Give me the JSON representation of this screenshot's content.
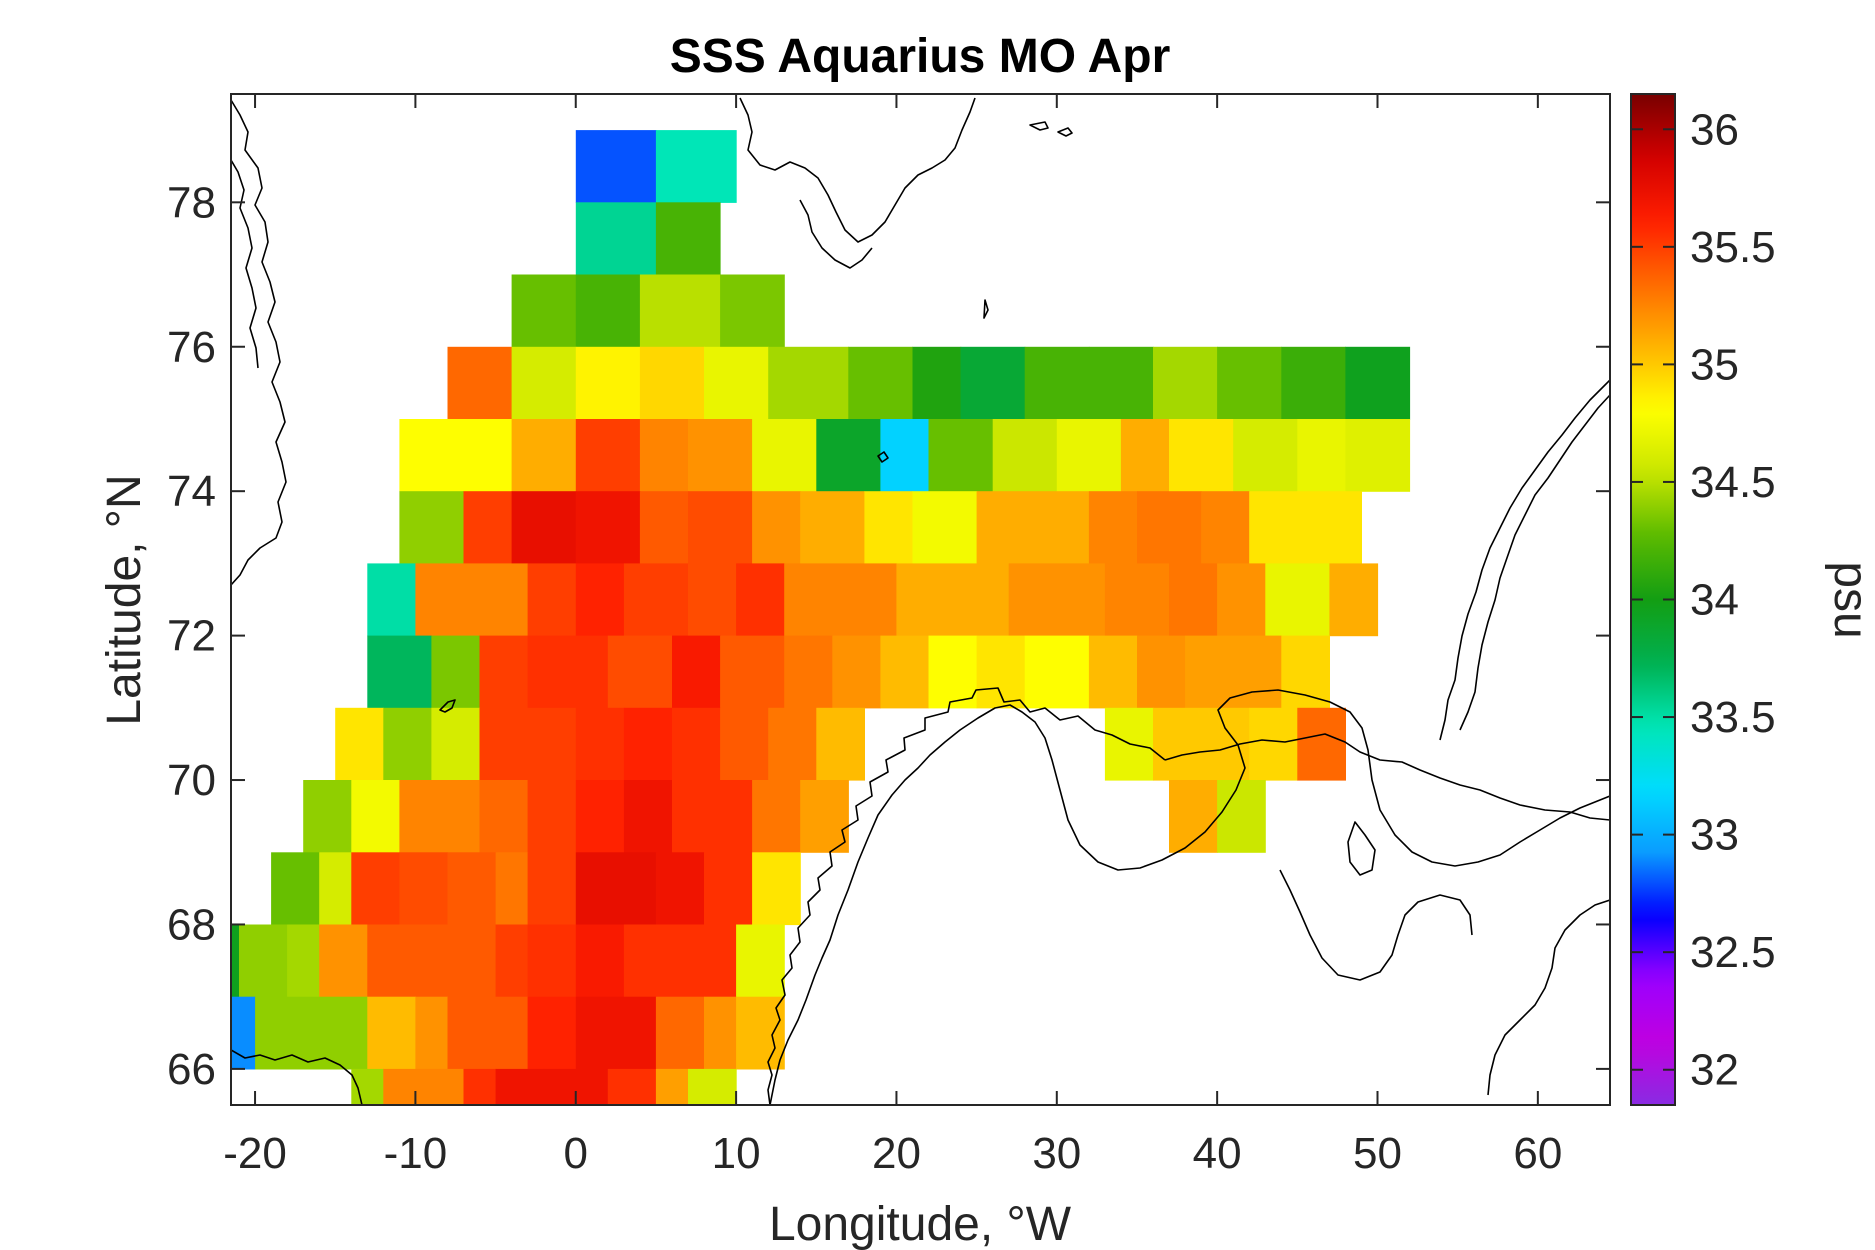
{
  "chart_data": {
    "type": "heatmap",
    "title": "SSS Aquarius MO Apr",
    "xlabel": "Longitude, °W",
    "ylabel": "Latitude, °N",
    "colorbar_label": "psu",
    "xlim": [
      -21.5,
      64.5
    ],
    "ylim": [
      65.5,
      79.5
    ],
    "x_ticks": [
      -20,
      -10,
      0,
      10,
      20,
      30,
      40,
      50,
      60
    ],
    "x_tick_labels": [
      "-20",
      "-10",
      "0",
      "10",
      "20",
      "30",
      "40",
      "50",
      "60"
    ],
    "y_ticks": [
      66,
      68,
      70,
      72,
      74,
      76,
      78
    ],
    "y_tick_labels": [
      "66",
      "68",
      "70",
      "72",
      "74",
      "76",
      "78"
    ],
    "clim": [
      31.85,
      36.15
    ],
    "colorbar_ticks": [
      32,
      32.5,
      33,
      33.5,
      34,
      34.5,
      35,
      35.5,
      36
    ],
    "colorbar_tick_labels": [
      "32",
      "32.5",
      "33",
      "33.5",
      "34",
      "34.5",
      "35",
      "35.5",
      "36"
    ],
    "colormap": [
      "#8a2be2",
      "#c000e0",
      "#9a00ff",
      "#0000ff",
      "#0a9cff",
      "#00dcff",
      "#00e6b4",
      "#00b050",
      "#139e13",
      "#5aba00",
      "#c8e600",
      "#ffff00",
      "#ffb400",
      "#ff6a00",
      "#ff1e00",
      "#d20000",
      "#780000"
    ],
    "rows": [
      {
        "lat": 78.5,
        "cells": [
          [
            0,
            5,
            32.8
          ],
          [
            5,
            10,
            33.45
          ]
        ]
      },
      {
        "lat": 77.5,
        "cells": [
          [
            0,
            5,
            33.55
          ],
          [
            5,
            9,
            34.2
          ]
        ]
      },
      {
        "lat": 76.5,
        "cells": [
          [
            -4,
            0,
            34.3
          ],
          [
            0,
            4,
            34.2
          ],
          [
            4,
            9,
            34.5
          ],
          [
            9,
            13,
            34.35
          ]
        ]
      },
      {
        "lat": 75.5,
        "cells": [
          [
            -8,
            -4,
            35.35
          ],
          [
            -4,
            0,
            34.6
          ],
          [
            0,
            4,
            34.85
          ],
          [
            4,
            8,
            34.95
          ],
          [
            8,
            12,
            34.7
          ],
          [
            12,
            17,
            34.45
          ],
          [
            17,
            21,
            34.3
          ],
          [
            21,
            24,
            34.05
          ],
          [
            24,
            28,
            33.85
          ],
          [
            28,
            32,
            34.2
          ],
          [
            32,
            36,
            34.2
          ],
          [
            36,
            40,
            34.45
          ],
          [
            40,
            44,
            34.3
          ],
          [
            44,
            48,
            34.15
          ],
          [
            48,
            52,
            33.95
          ]
        ]
      },
      {
        "lat": 74.5,
        "cells": [
          [
            -11,
            -4,
            34.8
          ],
          [
            -4,
            0,
            35.1
          ],
          [
            0,
            4,
            35.5
          ],
          [
            4,
            7,
            35.25
          ],
          [
            7,
            11,
            35.2
          ],
          [
            11,
            15,
            34.7
          ],
          [
            15,
            19,
            33.9
          ],
          [
            19,
            22,
            33.15
          ],
          [
            22,
            26,
            34.3
          ],
          [
            26,
            30,
            34.55
          ],
          [
            30,
            34,
            34.7
          ],
          [
            34,
            37,
            35.1
          ],
          [
            37,
            41,
            34.9
          ],
          [
            41,
            45,
            34.6
          ],
          [
            45,
            48,
            34.7
          ],
          [
            48,
            52,
            34.65
          ]
        ]
      },
      {
        "lat": 73.5,
        "cells": [
          [
            -11,
            -7,
            34.4
          ],
          [
            -7,
            -4,
            35.5
          ],
          [
            -4,
            0,
            35.75
          ],
          [
            0,
            4,
            35.7
          ],
          [
            4,
            7,
            35.4
          ],
          [
            7,
            11,
            35.45
          ],
          [
            11,
            14,
            35.2
          ],
          [
            14,
            18,
            35.1
          ],
          [
            18,
            21,
            34.9
          ],
          [
            21,
            25,
            34.75
          ],
          [
            25,
            32,
            35.1
          ],
          [
            32,
            35,
            35.25
          ],
          [
            35,
            39,
            35.3
          ],
          [
            39,
            42,
            35.25
          ],
          [
            42,
            49,
            34.9
          ]
        ]
      },
      {
        "lat": 72.5,
        "cells": [
          [
            -13,
            -10,
            33.5
          ],
          [
            -10,
            -3,
            35.25
          ],
          [
            -3,
            0,
            35.5
          ],
          [
            0,
            3,
            35.6
          ],
          [
            3,
            7,
            35.5
          ],
          [
            7,
            10,
            35.45
          ],
          [
            10,
            13,
            35.55
          ],
          [
            13,
            20,
            35.25
          ],
          [
            20,
            27,
            35.1
          ],
          [
            27,
            33,
            35.2
          ],
          [
            33,
            37,
            35.25
          ],
          [
            37,
            40,
            35.3
          ],
          [
            40,
            43,
            35.2
          ],
          [
            43,
            47,
            34.7
          ],
          [
            47,
            50,
            35.1
          ]
        ]
      },
      {
        "lat": 71.5,
        "cells": [
          [
            -13,
            -9,
            33.7
          ],
          [
            -9,
            -6,
            34.35
          ],
          [
            -6,
            -3,
            35.5
          ],
          [
            -3,
            2,
            35.55
          ],
          [
            2,
            6,
            35.45
          ],
          [
            6,
            9,
            35.65
          ],
          [
            9,
            13,
            35.4
          ],
          [
            13,
            16,
            35.3
          ],
          [
            16,
            19,
            35.2
          ],
          [
            19,
            22,
            35.05
          ],
          [
            22,
            25,
            34.8
          ],
          [
            25,
            28,
            34.9
          ],
          [
            28,
            32,
            34.8
          ],
          [
            32,
            35,
            35.05
          ],
          [
            35,
            38,
            35.2
          ],
          [
            38,
            44,
            35.15
          ],
          [
            44,
            47,
            34.95
          ]
        ]
      },
      {
        "lat": 70.5,
        "cells": [
          [
            -15,
            -12,
            34.9
          ],
          [
            -12,
            -9,
            34.4
          ],
          [
            -9,
            -6,
            34.6
          ],
          [
            -6,
            0,
            35.5
          ],
          [
            0,
            3,
            35.55
          ],
          [
            3,
            6,
            35.6
          ],
          [
            6,
            9,
            35.55
          ],
          [
            9,
            12,
            35.4
          ],
          [
            12,
            15,
            35.3
          ],
          [
            15,
            18,
            35.05
          ],
          [
            33,
            36,
            34.7
          ],
          [
            36,
            42,
            35.0
          ],
          [
            42,
            45,
            34.95
          ],
          [
            45,
            48,
            35.35
          ]
        ]
      },
      {
        "lat": 69.5,
        "cells": [
          [
            -17,
            -14,
            34.4
          ],
          [
            -14,
            -11,
            34.75
          ],
          [
            -11,
            -6,
            35.25
          ],
          [
            -6,
            -3,
            35.35
          ],
          [
            -3,
            0,
            35.5
          ],
          [
            0,
            3,
            35.6
          ],
          [
            3,
            6,
            35.7
          ],
          [
            6,
            11,
            35.55
          ],
          [
            11,
            14,
            35.3
          ],
          [
            14,
            17,
            35.15
          ],
          [
            37,
            40,
            35.1
          ],
          [
            40,
            43,
            34.55
          ]
        ]
      },
      {
        "lat": 68.5,
        "cells": [
          [
            -19,
            -16,
            34.3
          ],
          [
            -16,
            -14,
            34.6
          ],
          [
            -14,
            -11,
            35.5
          ],
          [
            -11,
            -8,
            35.45
          ],
          [
            -8,
            -5,
            35.4
          ],
          [
            -5,
            -3,
            35.3
          ],
          [
            -3,
            0,
            35.5
          ],
          [
            0,
            5,
            35.75
          ],
          [
            5,
            8,
            35.7
          ],
          [
            8,
            11,
            35.55
          ],
          [
            11,
            14,
            34.9
          ]
        ]
      },
      {
        "lat": 67.5,
        "cells": [
          [
            -21.5,
            -21,
            33.95
          ],
          [
            -21,
            -18,
            34.4
          ],
          [
            -18,
            -16,
            34.45
          ],
          [
            -16,
            -13,
            35.2
          ],
          [
            -13,
            -5,
            35.4
          ],
          [
            -5,
            -3,
            35.5
          ],
          [
            -3,
            0,
            35.55
          ],
          [
            0,
            3,
            35.65
          ],
          [
            3,
            5,
            35.55
          ],
          [
            5,
            10,
            35.55
          ],
          [
            10,
            13,
            34.7
          ]
        ]
      },
      {
        "lat": 66.5,
        "cells": [
          [
            -21.5,
            -20,
            32.9
          ],
          [
            -20,
            -13,
            34.4
          ],
          [
            -13,
            -10,
            35.05
          ],
          [
            -10,
            -8,
            35.2
          ],
          [
            -8,
            -3,
            35.4
          ],
          [
            -3,
            0,
            35.6
          ],
          [
            0,
            5,
            35.7
          ],
          [
            5,
            8,
            35.35
          ],
          [
            8,
            10,
            35.2
          ],
          [
            10,
            13,
            35.05
          ]
        ]
      },
      {
        "lat": 65.75,
        "cells": [
          [
            -14,
            -12,
            34.45
          ],
          [
            -12,
            -7,
            35.25
          ],
          [
            -7,
            -5,
            35.55
          ],
          [
            -5,
            -2,
            35.7
          ],
          [
            -2,
            2,
            35.7
          ],
          [
            2,
            5,
            35.55
          ],
          [
            5,
            7,
            35.15
          ],
          [
            7,
            10,
            34.6
          ]
        ]
      }
    ]
  }
}
